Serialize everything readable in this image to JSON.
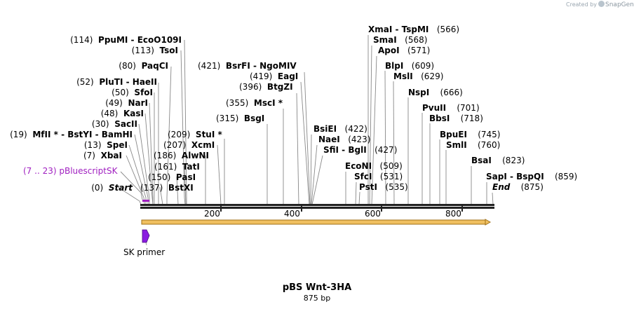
{
  "watermark": {
    "created_by": "Created by",
    "brand": "SnapGene"
  },
  "title": "pBS Wnt-3HA",
  "length": "875 bp",
  "ruler_ticks": [
    "200",
    "400",
    "600",
    "800"
  ],
  "feature": {
    "label": "(7 .. 23)  pBluescriptSK",
    "color": "#a020c0"
  },
  "primer": {
    "label": "SK primer",
    "color": "#9a20e0"
  },
  "arrow_color": "#f0c060",
  "labels": {
    "start": {
      "pos": "(0)",
      "name": "Start"
    },
    "bstxi": {
      "pos": "(137)",
      "name": "BstXI"
    },
    "pasi": {
      "pos": "(150)",
      "name": "PasI"
    },
    "tati": {
      "pos": "(161)",
      "name": "TatI"
    },
    "alwni": {
      "pos": "(186)",
      "name": "AlwNI"
    },
    "xcmi": {
      "pos": "(207)",
      "name": "XcmI"
    },
    "stui": {
      "pos": "(209)",
      "name": "StuI *"
    },
    "xbai": {
      "pos": "(7)",
      "name": "XbaI"
    },
    "spei": {
      "pos": "(13)",
      "name": "SpeI"
    },
    "mfli": {
      "pos": "(19)",
      "name": "MfII *  - BstYI  - BamHI"
    },
    "sacii": {
      "pos": "(30)",
      "name": "SacII"
    },
    "kasi": {
      "pos": "(48)",
      "name": "KasI"
    },
    "nari": {
      "pos": "(49)",
      "name": "NarI"
    },
    "sfoi": {
      "pos": "(50)",
      "name": "SfoI"
    },
    "pluti": {
      "pos": "(52)",
      "name": "PluTI  - HaeII"
    },
    "paqci": {
      "pos": "(80)",
      "name": "PaqCI"
    },
    "tsoi": {
      "pos": "(113)",
      "name": "TsoI"
    },
    "ppumi": {
      "pos": "(114)",
      "name": "PpuMI  - EcoO109I"
    },
    "bsgi": {
      "pos": "(315)",
      "name": "BsgI"
    },
    "msci": {
      "pos": "(355)",
      "name": "MscI *"
    },
    "btgzi": {
      "pos": "(396)",
      "name": "BtgZI"
    },
    "eagi": {
      "pos": "(419)",
      "name": "EagI"
    },
    "bsrfi": {
      "pos": "(421)",
      "name": "BsrFI  - NgoMIV"
    },
    "bsiei": {
      "pos": "(422)",
      "name": "BsiEI"
    },
    "naei": {
      "pos": "(423)",
      "name": "NaeI"
    },
    "sfii": {
      "pos": "(427)",
      "name": "SfiI  - BglI"
    },
    "econi": {
      "pos": "(509)",
      "name": "EcoNI"
    },
    "sfci": {
      "pos": "(531)",
      "name": "SfcI"
    },
    "psti": {
      "pos": "(535)",
      "name": "PstI"
    },
    "xmai": {
      "pos": "(566)",
      "name": "XmaI  - TspMI"
    },
    "smai": {
      "pos": "(568)",
      "name": "SmaI"
    },
    "apoi": {
      "pos": "(571)",
      "name": "ApoI"
    },
    "blpi": {
      "pos": "(609)",
      "name": "BlpI"
    },
    "msli": {
      "pos": "(629)",
      "name": "MslI"
    },
    "nspi": {
      "pos": "(666)",
      "name": "NspI"
    },
    "pvuii": {
      "pos": "(701)",
      "name": "PvuII"
    },
    "bbsi": {
      "pos": "(718)",
      "name": "BbsI"
    },
    "bpuei": {
      "pos": "(745)",
      "name": "BpuEI"
    },
    "smli": {
      "pos": "(760)",
      "name": "SmlI"
    },
    "bsai": {
      "pos": "(823)",
      "name": "BsaI"
    },
    "sapi": {
      "pos": "(859)",
      "name": "SapI  - BspQI"
    },
    "end": {
      "pos": "(875)",
      "name": "End"
    }
  }
}
